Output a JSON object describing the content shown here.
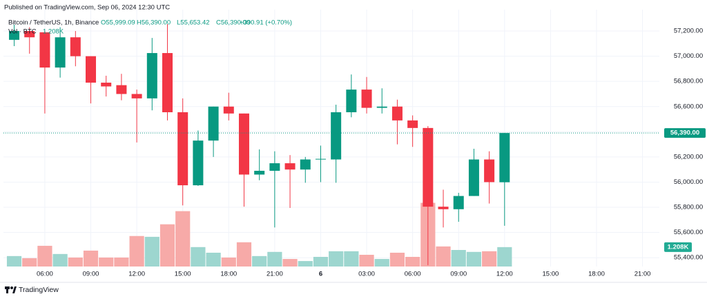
{
  "published": "Published on TradingView.com, Sep 06, 2024 12:30 UTC",
  "brand": "TradingView",
  "chart_data": {
    "type": "candlestick",
    "title": "Bitcoin / TetherUS, 1h, Binance",
    "ohlc_header": {
      "open": "O55,999.09",
      "high": "H56,390.00",
      "low": "L55,653.42",
      "close": "C56,390.00",
      "change": "+390.91 (+0.70%)"
    },
    "volume_title": "Vol · BTC",
    "up_color": "#089981",
    "down_color": "#f23645",
    "volume_up_color": "#9dd6cf",
    "volume_down_color": "#f7aaa8",
    "grid": true,
    "x": [
      4,
      5,
      6,
      7,
      8,
      9,
      10,
      11,
      12,
      13,
      14,
      15,
      16,
      17,
      18,
      19,
      20,
      21,
      22,
      23,
      24,
      25,
      26,
      27,
      28,
      29,
      30,
      31,
      32,
      33,
      34,
      35,
      36
    ],
    "open": [
      57130,
      57200,
      57190,
      56910,
      57150,
      57000,
      56790,
      56770,
      56700,
      56665,
      57025,
      56555,
      55975,
      56330,
      56600,
      56545,
      56060,
      56090,
      56150,
      56100,
      56180,
      56180,
      56555,
      56735,
      56590,
      56600,
      56490,
      56430,
      55805,
      55785,
      55890,
      56180,
      55999.09
    ],
    "high": [
      57250,
      57230,
      57200,
      57230,
      57200,
      57000,
      56845,
      56860,
      56735,
      57145,
      57255,
      56665,
      56410,
      56600,
      56710,
      56545,
      56260,
      56245,
      56215,
      56200,
      56290,
      56615,
      56855,
      56835,
      56745,
      56655,
      56530,
      56445,
      55940,
      55915,
      56265,
      56245,
      56390
    ],
    "low": [
      57080,
      57020,
      56545,
      56830,
      56920,
      56625,
      56680,
      56650,
      56315,
      56570,
      56490,
      55815,
      55970,
      56200,
      56490,
      55805,
      56015,
      55640,
      55795,
      55995,
      56000,
      55995,
      56515,
      56545,
      56545,
      56300,
      56280,
      55340,
      55640,
      55685,
      55890,
      55830,
      55653.42
    ],
    "close": [
      57200,
      57150,
      56910,
      57150,
      57000,
      56790,
      56760,
      56700,
      56665,
      57025,
      56555,
      55975,
      56330,
      56600,
      56545,
      56060,
      56090,
      56150,
      56100,
      56180,
      56185,
      56555,
      56735,
      56590,
      56600,
      56490,
      56430,
      55805,
      55785,
      55890,
      56180,
      56000,
      56390
    ],
    "volume": [
      0.65,
      0.52,
      1.29,
      0.78,
      0.56,
      0.99,
      0.56,
      0.56,
      1.9,
      1.85,
      2.63,
      3.45,
      1.21,
      0.86,
      0.56,
      1.51,
      0.65,
      0.91,
      0.47,
      0.34,
      0.6,
      0.95,
      0.95,
      0.73,
      0.47,
      0.86,
      0.6,
      3.97,
      1.25,
      1.03,
      0.91,
      0.95,
      1.208
    ],
    "volume_label": {
      "value": 1.208,
      "label": "1.208K"
    },
    "y2lim": [
      0,
      10.3
    ],
    "last_price": {
      "value": 56390,
      "label": "56,390.00"
    },
    "xlim": [
      3.3,
      46.1
    ],
    "xticks": [
      {
        "value": 6,
        "label": "06:00"
      },
      {
        "value": 9,
        "label": "09:00"
      },
      {
        "value": 12,
        "label": "12:00"
      },
      {
        "value": 15,
        "label": "15:00"
      },
      {
        "value": 18,
        "label": "18:00"
      },
      {
        "value": 21,
        "label": "21:00"
      },
      {
        "value": 24,
        "label": "6"
      },
      {
        "value": 27,
        "label": "03:00"
      },
      {
        "value": 30,
        "label": "06:00"
      },
      {
        "value": 33,
        "label": "09:00"
      },
      {
        "value": 36,
        "label": "12:00"
      },
      {
        "value": 39,
        "label": "15:00"
      },
      {
        "value": 42,
        "label": "18:00"
      },
      {
        "value": 45,
        "label": "21:00"
      }
    ],
    "ylim": [
      55330,
      57326
    ],
    "yticks": [
      {
        "value": 55400,
        "label": "55,400.00"
      },
      {
        "value": 55600,
        "label": "55,600.00"
      },
      {
        "value": 55800,
        "label": "55,800.00"
      },
      {
        "value": 56000,
        "label": "56,000.00"
      },
      {
        "value": 56200,
        "label": "56,200.00"
      },
      {
        "value": 56400,
        "label": "56,400.00"
      },
      {
        "value": 56600,
        "label": "56,600.00"
      },
      {
        "value": 56800,
        "label": "56,800.00"
      },
      {
        "value": 57000,
        "label": "57,000.00"
      },
      {
        "value": 57200,
        "label": "57,200.00"
      }
    ]
  }
}
